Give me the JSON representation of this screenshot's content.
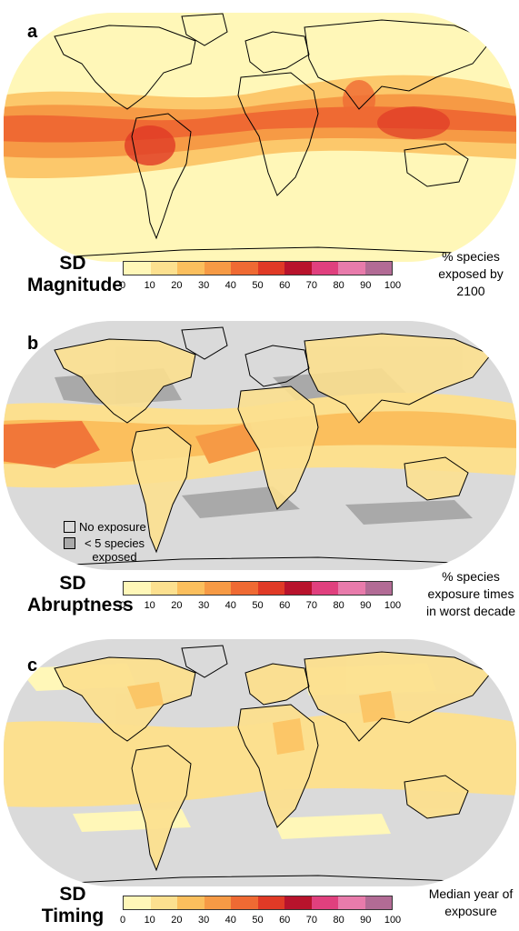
{
  "scale": {
    "ticks": [
      "0",
      "10",
      "20",
      "30",
      "40",
      "50",
      "60",
      "70",
      "80",
      "90",
      "100"
    ],
    "colors": [
      "#fff7b8",
      "#fce08f",
      "#fbbf5d",
      "#f69a45",
      "#ef6a33",
      "#e03a26",
      "#b8132c",
      "#e0407e",
      "#e87bab",
      "#b26b95",
      "#7d3a5e"
    ]
  },
  "map_colors": {
    "ocean_no_exposure": "#dadada",
    "few_species": "#a9a9a9",
    "land_outline": "#000000"
  },
  "panels": [
    {
      "letter": "a",
      "title_line1": "SD",
      "title_line2": "Magnitude",
      "desc": "% species exposed by 2100",
      "background": "#fff7b8"
    },
    {
      "letter": "b",
      "title_line1": "SD",
      "title_line2": "Abruptness",
      "desc": "% species exposure times in worst decade",
      "background": "#dadada",
      "legend": {
        "no_exposure": "No exposure",
        "few_species": "< 5 species exposed"
      }
    },
    {
      "letter": "c",
      "title_line1": "SD",
      "title_line2": "Timing",
      "desc": "Median year of exposure",
      "background": "#dadada"
    }
  ]
}
